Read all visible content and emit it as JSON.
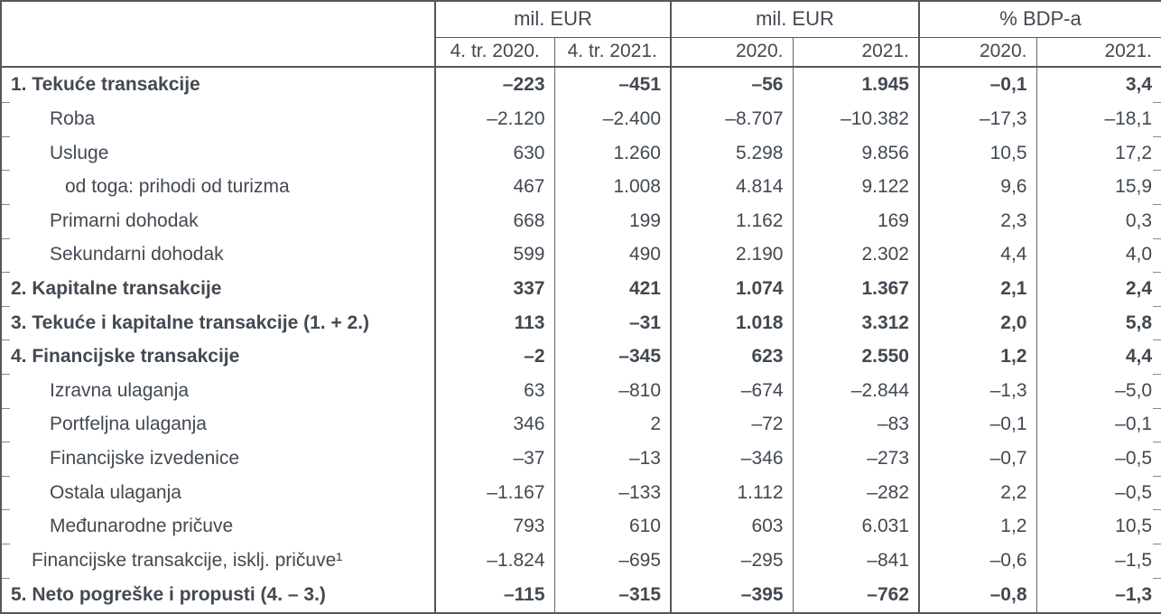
{
  "colors": {
    "text": "#424951",
    "border_dark": "#54565a",
    "border_light": "#63666a",
    "edge_tick": "#85878a"
  },
  "table": {
    "col_groups": [
      {
        "label": "mil. EUR",
        "sub": [
          "4. tr. 2020.",
          "4. tr. 2021."
        ]
      },
      {
        "label": "mil. EUR",
        "sub": [
          "2020.",
          "2021."
        ]
      },
      {
        "label": "% BDP-a",
        "sub": [
          "2020.",
          "2021."
        ]
      }
    ],
    "rows": [
      {
        "label": "1. Tekuće transakcije",
        "bold": true,
        "indent": 0,
        "values": [
          "–223",
          "–451",
          "–56",
          "1.945",
          "–0,1",
          "3,4"
        ]
      },
      {
        "label": "Roba",
        "bold": false,
        "indent": 2,
        "values": [
          "–2.120",
          "–2.400",
          "–8.707",
          "–10.382",
          "–17,3",
          "–18,1"
        ]
      },
      {
        "label": "Usluge",
        "bold": false,
        "indent": 2,
        "values": [
          "630",
          "1.260",
          "5.298",
          "9.856",
          "10,5",
          "17,2"
        ]
      },
      {
        "label": "od toga: prihodi od turizma",
        "bold": false,
        "indent": 3,
        "values": [
          "467",
          "1.008",
          "4.814",
          "9.122",
          "9,6",
          "15,9"
        ]
      },
      {
        "label": "Primarni dohodak",
        "bold": false,
        "indent": 2,
        "values": [
          "668",
          "199",
          "1.162",
          "169",
          "2,3",
          "0,3"
        ]
      },
      {
        "label": "Sekundarni dohodak",
        "bold": false,
        "indent": 2,
        "values": [
          "599",
          "490",
          "2.190",
          "2.302",
          "4,4",
          "4,0"
        ]
      },
      {
        "label": "2. Kapitalne transakcije",
        "bold": true,
        "indent": 0,
        "values": [
          "337",
          "421",
          "1.074",
          "1.367",
          "2,1",
          "2,4"
        ]
      },
      {
        "label": "3. Tekuće i kapitalne transakcije (1. + 2.)",
        "bold": true,
        "indent": 0,
        "values": [
          "113",
          "–31",
          "1.018",
          "3.312",
          "2,0",
          "5,8"
        ]
      },
      {
        "label": "4. Financijske transakcije",
        "bold": true,
        "indent": 0,
        "values": [
          "–2",
          "–345",
          "623",
          "2.550",
          "1,2",
          "4,4"
        ]
      },
      {
        "label": "Izravna ulaganja",
        "bold": false,
        "indent": 2,
        "values": [
          "63",
          "–810",
          "–674",
          "–2.844",
          "–1,3",
          "–5,0"
        ]
      },
      {
        "label": "Portfeljna ulaganja",
        "bold": false,
        "indent": 2,
        "values": [
          "346",
          "2",
          "–72",
          "–83",
          "–0,1",
          "–0,1"
        ]
      },
      {
        "label": "Financijske izvedenice",
        "bold": false,
        "indent": 2,
        "values": [
          "–37",
          "–13",
          "–346",
          "–273",
          "–0,7",
          "–0,5"
        ]
      },
      {
        "label": "Ostala ulaganja",
        "bold": false,
        "indent": 2,
        "values": [
          "–1.167",
          "–133",
          "1.112",
          "–282",
          "2,2",
          "–0,5"
        ]
      },
      {
        "label": "Međunarodne pričuve",
        "bold": false,
        "indent": 2,
        "values": [
          "793",
          "610",
          "603",
          "6.031",
          "1,2",
          "10,5"
        ]
      },
      {
        "label": "Financijske transakcije, isklj. pričuve¹",
        "bold": false,
        "indent": 1,
        "values": [
          "–1.824",
          "–695",
          "–295",
          "–841",
          "–0,6",
          "–1,5"
        ]
      },
      {
        "label": "5. Neto pogreške i propusti (4. – 3.)",
        "bold": true,
        "indent": 0,
        "values": [
          "–115",
          "–315",
          "–395",
          "–762",
          "–0,8",
          "–1,3"
        ]
      }
    ]
  }
}
